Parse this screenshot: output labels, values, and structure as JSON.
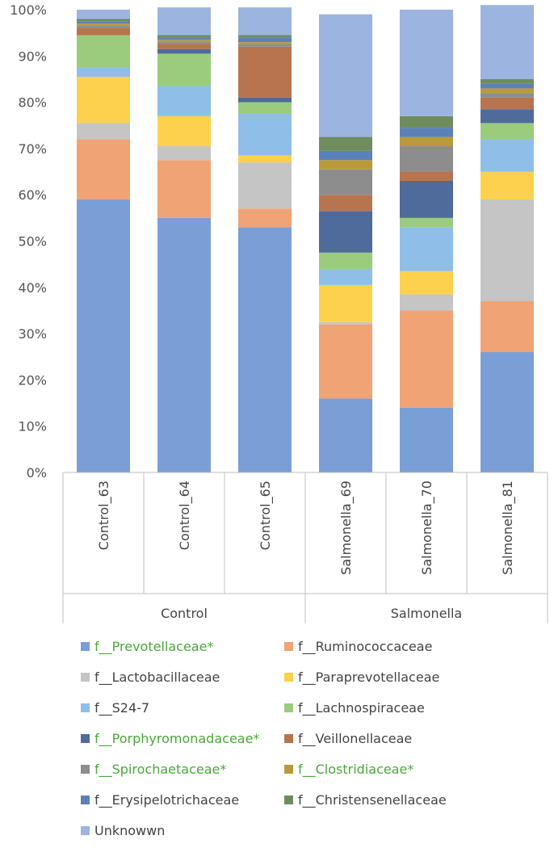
{
  "chart_data": {
    "type": "bar",
    "stacked": true,
    "percent": true,
    "ylim": [
      0,
      100
    ],
    "yticks": [
      "0%",
      "10%",
      "20%",
      "30%",
      "40%",
      "50%",
      "60%",
      "70%",
      "80%",
      "90%",
      "100%"
    ],
    "categories": [
      "Control_63",
      "Control_64",
      "Control_65",
      "Salmonella_69",
      "Salmonella_70",
      "Salmonella_81"
    ],
    "groups": [
      {
        "label": "Control",
        "categories": [
          "Control_63",
          "Control_64",
          "Control_65"
        ]
      },
      {
        "label": "Salmonella",
        "categories": [
          "Salmonella_69",
          "Salmonella_70",
          "Salmonella_81"
        ]
      }
    ],
    "grid": false,
    "legend_position": "bottom",
    "series": [
      {
        "name": "f__Prevotellaceae*",
        "highlight": true,
        "color": "#7a9fd6",
        "values": [
          59,
          55,
          53,
          16,
          14,
          26
        ]
      },
      {
        "name": "f__Ruminococcaceae",
        "highlight": false,
        "color": "#f0a375",
        "values": [
          13,
          12.5,
          4,
          16,
          21,
          11
        ]
      },
      {
        "name": "f__Lactobacillaceae",
        "highlight": false,
        "color": "#c5c5c5",
        "values": [
          3.5,
          3,
          10,
          0.5,
          3.5,
          22
        ]
      },
      {
        "name": "f__Paraprevotellaceae",
        "highlight": false,
        "color": "#fdd14d",
        "values": [
          10,
          6.5,
          1.5,
          8,
          5,
          6
        ]
      },
      {
        "name": "f__S24-7",
        "highlight": false,
        "color": "#8fbfe9",
        "values": [
          2,
          6.5,
          9,
          3.5,
          9.5,
          7
        ]
      },
      {
        "name": "f__Lachnospiraceae",
        "highlight": false,
        "color": "#9bcc7b",
        "values": [
          7,
          7,
          2.5,
          3.5,
          2,
          3.5
        ]
      },
      {
        "name": "f__Porphyromonadaceae*",
        "highlight": true,
        "color": "#4f6b9c",
        "values": [
          0,
          1,
          1,
          9,
          8,
          3
        ]
      },
      {
        "name": "f__Veillonellaceae",
        "highlight": false,
        "color": "#b8744e",
        "values": [
          1.5,
          1,
          11,
          3.5,
          2,
          2.5
        ]
      },
      {
        "name": "f__Spirochaetaceae*",
        "highlight": true,
        "color": "#8d8d8d",
        "values": [
          0.5,
          0.5,
          0.5,
          5.5,
          5.5,
          1
        ]
      },
      {
        "name": "f__Clostridiaceae*",
        "highlight": true,
        "color": "#b89a3a",
        "values": [
          0.5,
          0.5,
          0.5,
          2,
          2,
          1
        ]
      },
      {
        "name": "f__Erysipelotrichaceae",
        "highlight": false,
        "color": "#5b82b8",
        "values": [
          0.5,
          0.5,
          1,
          2,
          2,
          1
        ]
      },
      {
        "name": "f__Christensenellaceae",
        "highlight": false,
        "color": "#6f8c5e",
        "values": [
          0.5,
          0.5,
          0.5,
          3,
          2.5,
          1
        ]
      },
      {
        "name": "Unknowwn",
        "highlight": false,
        "color": "#9bb4e0",
        "values": [
          2,
          6,
          6,
          26.5,
          23,
          16
        ]
      }
    ]
  }
}
